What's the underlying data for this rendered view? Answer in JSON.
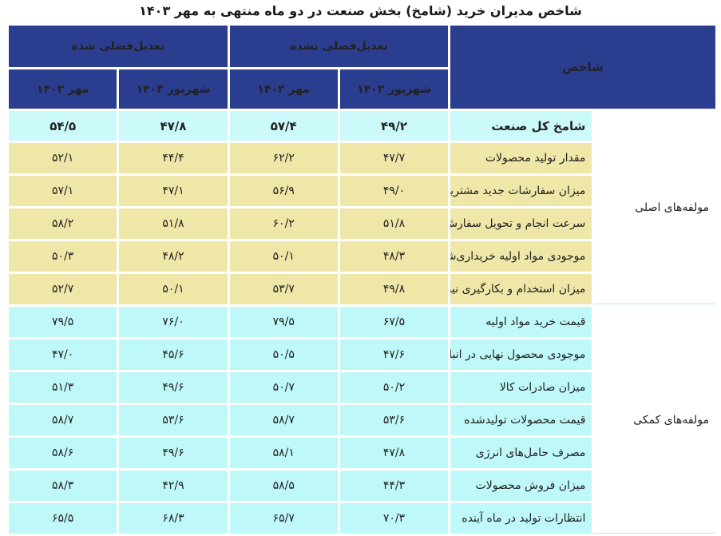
{
  "title": "شاخص مدیران خرید (شامخ) بخش صنعت در دو ماه منتهی به مهر ۱۴۰۳",
  "header": {
    "indicator": "شاخص",
    "not_adjusted": "تعدیل‌فصلی نشده",
    "adjusted": "تعدیل‌فصلی شده",
    "month_1": "شهریور ۱۴۰۳",
    "month_2": "مهر ۱۴۰۳"
  },
  "total_row": {
    "label": "شامخ کل صنعت",
    "values": [
      "۴۹/۲",
      "۵۷/۴",
      "۴۷/۸",
      "۵۴/۵"
    ]
  },
  "main_group": {
    "label": "مولفه‌های اصلی",
    "rows": [
      {
        "label": "مقدار تولید محصولات",
        "values": [
          "۴۷/۷",
          "۶۲/۲",
          "۴۴/۴",
          "۵۲/۱"
        ]
      },
      {
        "label": "میزان سفارشات جدید مشتریان",
        "values": [
          "۴۹/۰",
          "۵۶/۹",
          "۴۷/۱",
          "۵۷/۱"
        ]
      },
      {
        "label": "سرعت انجام و تحویل سفارش",
        "values": [
          "۵۱/۸",
          "۶۰/۲",
          "۵۱/۸",
          "۵۸/۲"
        ]
      },
      {
        "label": "موجودی مواد اولیه خریداری‌شده",
        "values": [
          "۴۸/۳",
          "۵۰/۱",
          "۴۸/۲",
          "۵۰/۳"
        ]
      },
      {
        "label": "میزان استخدام و بکارگیری نیروی انسانی",
        "values": [
          "۴۹/۸",
          "۵۳/۷",
          "۵۰/۱",
          "۵۲/۷"
        ]
      }
    ]
  },
  "aux_group": {
    "label": "مولفه‌های کمکی",
    "rows": [
      {
        "label": "قیمت خرید مواد اولیه",
        "values": [
          "۶۷/۵",
          "۷۹/۵",
          "۷۶/۰",
          "۷۹/۵"
        ]
      },
      {
        "label": "موجودی محصول نهایی در انبار",
        "values": [
          "۴۷/۶",
          "۵۰/۵",
          "۴۵/۶",
          "۴۷/۰"
        ]
      },
      {
        "label": "میزان صادرات کالا",
        "values": [
          "۵۰/۲",
          "۵۰/۷",
          "۴۹/۶",
          "۵۱/۳"
        ]
      },
      {
        "label": "قیمت محصولات تولیدشده",
        "values": [
          "۵۳/۶",
          "۵۸/۷",
          "۵۳/۶",
          "۵۸/۷"
        ]
      },
      {
        "label": "مصرف حامل‌های انرژی",
        "values": [
          "۴۷/۸",
          "۵۸/۱",
          "۴۹/۶",
          "۵۸/۶"
        ]
      },
      {
        "label": "میزان فروش محصولات",
        "values": [
          "۴۴/۳",
          "۵۸/۵",
          "۴۲/۹",
          "۵۸/۳"
        ]
      },
      {
        "label": "انتظارات تولید در ماه آینده",
        "values": [
          "۷۰/۳",
          "۶۵/۷",
          "۶۸/۳",
          "۶۵/۵"
        ]
      }
    ]
  },
  "colors": {
    "header_bg": "#2b3d8f",
    "total_bg": "#ccfafa",
    "main_bg": "#efe7a7",
    "aux_bg": "#bff8f8"
  }
}
